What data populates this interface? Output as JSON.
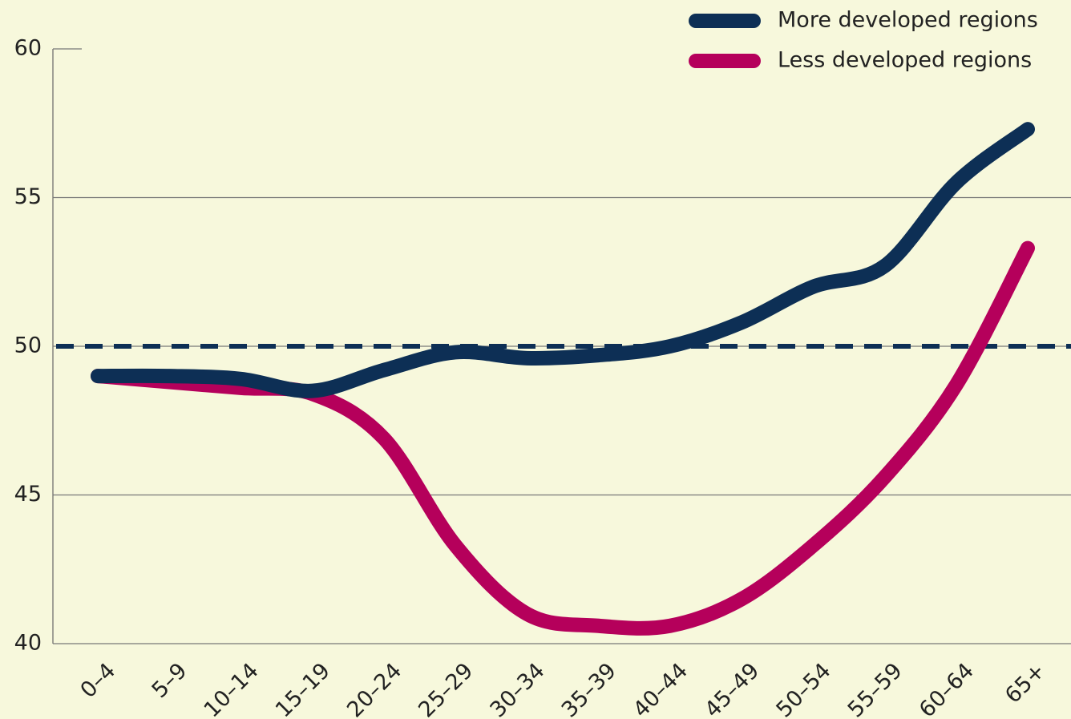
{
  "chart_data": {
    "type": "line",
    "categories": [
      "0–4",
      "5–9",
      "10–14",
      "15–19",
      "20–24",
      "25–29",
      "30–34",
      "35–39",
      "40–44",
      "45–49",
      "50–54",
      "55–59",
      "60–64",
      "65+"
    ],
    "series": [
      {
        "name": "More developed regions",
        "color": "#0d2f55",
        "values": [
          49.0,
          49.0,
          48.9,
          48.5,
          49.2,
          49.8,
          49.6,
          49.7,
          50.0,
          50.8,
          52.0,
          52.7,
          55.5,
          57.3
        ]
      },
      {
        "name": "Less developed regions",
        "color": "#b5005b",
        "values": [
          49.0,
          48.8,
          48.6,
          48.4,
          46.9,
          43.3,
          41.0,
          40.6,
          40.6,
          41.5,
          43.3,
          45.6,
          48.7,
          53.3
        ]
      }
    ],
    "reference_line": 50,
    "ylim": [
      40,
      60
    ],
    "yticks": [
      40,
      45,
      50,
      55,
      60
    ],
    "grid": true,
    "legend": "top-right"
  }
}
